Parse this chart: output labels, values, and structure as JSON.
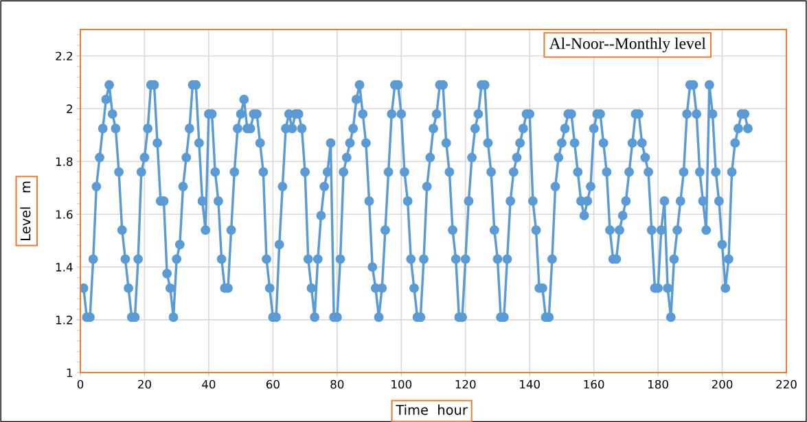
{
  "chart_data": {
    "type": "line",
    "title": "Al-Noor--Monthly level",
    "xlabel": "Time  hour",
    "ylabel": "Level   m",
    "x": [
      1,
      2,
      3,
      4,
      5,
      6,
      7,
      8,
      9,
      10,
      11,
      12,
      13,
      14,
      15,
      16,
      17,
      18,
      19,
      20,
      21,
      22,
      23,
      24,
      25,
      26,
      27,
      28,
      29,
      30,
      31,
      32,
      33,
      34,
      35,
      36,
      37,
      38,
      39,
      40,
      41,
      42,
      43,
      44,
      45,
      46,
      47,
      48,
      49,
      50,
      51,
      52,
      53,
      54,
      55,
      56,
      57,
      58,
      59,
      60,
      61,
      62,
      63,
      64,
      65,
      66,
      67,
      68,
      69,
      70,
      71,
      72,
      73,
      74,
      75,
      76,
      77,
      78,
      79,
      80,
      81,
      82,
      83,
      84,
      85,
      86,
      87,
      88,
      89,
      90,
      91,
      92,
      93,
      94,
      95,
      96,
      97,
      98,
      99,
      100,
      101,
      102,
      103,
      104,
      105,
      106,
      107,
      108,
      109,
      110,
      111,
      112,
      113,
      114,
      115,
      116,
      117,
      118,
      119,
      120,
      121,
      122,
      123,
      124,
      125,
      126,
      127,
      128,
      129,
      130,
      131,
      132,
      133,
      134,
      135,
      136,
      137,
      138,
      139,
      140,
      141,
      142,
      143,
      144,
      145,
      146,
      147,
      148,
      149,
      150,
      151,
      152,
      153,
      154,
      155,
      156,
      157,
      158,
      159,
      160,
      161,
      162,
      163,
      164,
      165,
      166,
      167,
      168,
      169,
      170,
      171,
      172,
      173,
      174,
      175,
      176,
      177,
      178,
      179,
      180,
      181,
      182,
      183,
      184,
      185,
      186,
      187,
      188,
      189,
      190,
      191,
      192,
      193,
      194,
      195,
      196,
      197,
      198,
      199,
      200,
      201,
      202,
      203,
      204,
      205,
      206,
      207,
      208
    ],
    "series": [
      {
        "color": "#5b9bd5",
        "values": [
          1.32,
          1.21,
          1.21,
          1.43,
          1.705,
          1.815,
          1.925,
          2.035,
          2.09,
          1.98,
          1.925,
          1.76,
          1.54,
          1.43,
          1.32,
          1.21,
          1.21,
          1.43,
          1.76,
          1.815,
          1.925,
          2.09,
          2.09,
          1.87,
          1.65,
          1.65,
          1.375,
          1.32,
          1.21,
          1.43,
          1.485,
          1.705,
          1.815,
          1.925,
          2.09,
          2.09,
          1.87,
          1.65,
          1.54,
          1.98,
          1.98,
          1.76,
          1.65,
          1.43,
          1.32,
          1.32,
          1.54,
          1.76,
          1.925,
          1.98,
          2.035,
          1.925,
          1.925,
          1.98,
          1.98,
          1.87,
          1.76,
          1.43,
          1.32,
          1.21,
          1.21,
          1.485,
          1.705,
          1.925,
          1.98,
          1.925,
          1.98,
          1.98,
          1.925,
          1.76,
          1.43,
          1.32,
          1.21,
          1.43,
          1.595,
          1.705,
          1.76,
          1.87,
          1.21,
          1.21,
          1.43,
          1.76,
          1.815,
          1.87,
          1.925,
          2.035,
          2.09,
          1.98,
          1.87,
          1.65,
          1.4,
          1.32,
          1.21,
          1.32,
          1.54,
          1.76,
          1.98,
          2.09,
          2.09,
          1.98,
          1.76,
          1.65,
          1.43,
          1.32,
          1.21,
          1.21,
          1.43,
          1.705,
          1.815,
          1.925,
          1.98,
          2.09,
          2.09,
          1.87,
          1.76,
          1.54,
          1.43,
          1.21,
          1.21,
          1.43,
          1.65,
          1.815,
          1.925,
          1.98,
          2.09,
          2.09,
          1.87,
          1.76,
          1.54,
          1.43,
          1.21,
          1.21,
          1.43,
          1.65,
          1.76,
          1.815,
          1.87,
          1.925,
          1.98,
          1.98,
          1.65,
          1.54,
          1.32,
          1.32,
          1.21,
          1.21,
          1.43,
          1.705,
          1.815,
          1.87,
          1.925,
          1.98,
          1.98,
          1.87,
          1.76,
          1.65,
          1.595,
          1.65,
          1.705,
          1.925,
          1.98,
          1.98,
          1.87,
          1.76,
          1.54,
          1.43,
          1.43,
          1.54,
          1.595,
          1.65,
          1.76,
          1.87,
          1.98,
          1.98,
          1.87,
          1.815,
          1.76,
          1.54,
          1.32,
          1.32,
          1.54,
          1.65,
          1.32,
          1.21,
          1.43,
          1.54,
          1.65,
          1.76,
          1.98,
          2.09,
          2.09,
          1.98,
          1.76,
          1.65,
          1.54,
          2.09,
          1.98,
          1.76,
          1.65,
          1.485,
          1.32,
          1.43,
          1.76,
          1.87,
          1.925,
          1.98,
          1.98,
          1.925
        ]
      }
    ],
    "xlim": [
      0,
      220
    ],
    "xticks": [
      0,
      20,
      40,
      60,
      80,
      100,
      120,
      140,
      160,
      180,
      200,
      220
    ],
    "ylim": [
      1,
      2.3
    ],
    "yticks": [
      1,
      1.2,
      1.4,
      1.6,
      1.8,
      2,
      2.2
    ],
    "grid": true,
    "marker": "circle",
    "line_style": "solid"
  }
}
